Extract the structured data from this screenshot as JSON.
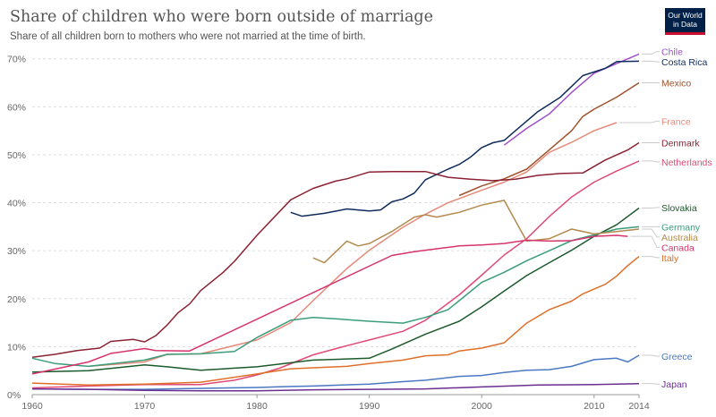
{
  "header": {
    "title": "Share of children who were born outside of marriage",
    "subtitle": "Share of all children born to mothers who were not married at the time of birth.",
    "logo_line1": "Our World",
    "logo_line2": "in Data"
  },
  "chart_data": {
    "type": "line",
    "title": "Share of children who were born outside of marriage",
    "subtitle": "Share of all children born to mothers who were not married at the time of birth.",
    "xlabel": "",
    "ylabel": "",
    "xlim": [
      1960,
      2014
    ],
    "ylim": [
      0,
      72
    ],
    "x_ticks": [
      1960,
      1970,
      1980,
      1990,
      2000,
      2010,
      2014
    ],
    "y_ticks": [
      0,
      10,
      20,
      30,
      40,
      50,
      60,
      70
    ],
    "y_tick_labels": [
      "0%",
      "10%",
      "20%",
      "30%",
      "40%",
      "50%",
      "60%",
      "70%"
    ],
    "grid": "horizontal dashed",
    "legend": "right, labels at line ends",
    "series": [
      {
        "name": "Chile",
        "color": "#a04ec7",
        "label_value": 71.5,
        "points": [
          [
            2002,
            52
          ],
          [
            2004,
            55.5
          ],
          [
            2006,
            58.5
          ],
          [
            2008,
            63
          ],
          [
            2010,
            67
          ],
          [
            2012,
            69
          ],
          [
            2014,
            71
          ]
        ]
      },
      {
        "name": "Costa Rica",
        "color": "#0f2b5c",
        "label_value": 69.5,
        "points": [
          [
            1983,
            38
          ],
          [
            1984,
            37.2
          ],
          [
            1986,
            37.8
          ],
          [
            1988,
            38.7
          ],
          [
            1990,
            38.3
          ],
          [
            1991,
            38.5
          ],
          [
            1992,
            40.2
          ],
          [
            1993,
            40.8
          ],
          [
            1994,
            42
          ],
          [
            1995,
            44.8
          ],
          [
            1997,
            47
          ],
          [
            1998,
            48
          ],
          [
            1999,
            49.5
          ],
          [
            2000,
            51.5
          ],
          [
            2001,
            52.5
          ],
          [
            2002,
            53
          ],
          [
            2003,
            55
          ],
          [
            2005,
            59
          ],
          [
            2007,
            62
          ],
          [
            2009,
            66.5
          ],
          [
            2011,
            68
          ],
          [
            2012,
            69.4
          ],
          [
            2014,
            69.5
          ]
        ]
      },
      {
        "name": "Mexico",
        "color": "#a0522d",
        "label_value": 65,
        "points": [
          [
            1998,
            41.5
          ],
          [
            2000,
            43.5
          ],
          [
            2002,
            45
          ],
          [
            2004,
            47
          ],
          [
            2006,
            51
          ],
          [
            2008,
            55
          ],
          [
            2009,
            58
          ],
          [
            2010,
            59.5
          ],
          [
            2012,
            62
          ],
          [
            2014,
            65
          ]
        ]
      },
      {
        "name": "France",
        "color": "#e58a7a",
        "label_value": 57,
        "points": [
          [
            1965,
            5.9
          ],
          [
            1970,
            6.8
          ],
          [
            1972,
            8.4
          ],
          [
            1975,
            8.5
          ],
          [
            1980,
            11.4
          ],
          [
            1983,
            15
          ],
          [
            1985,
            19.6
          ],
          [
            1988,
            26.3
          ],
          [
            1990,
            30.1
          ],
          [
            1993,
            34.9
          ],
          [
            1995,
            37.6
          ],
          [
            1997,
            40
          ],
          [
            2000,
            42.6
          ],
          [
            2002,
            44.3
          ],
          [
            2004,
            46.4
          ],
          [
            2006,
            50.5
          ],
          [
            2008,
            52.6
          ],
          [
            2010,
            55
          ],
          [
            2012,
            56.7
          ]
        ]
      },
      {
        "name": "Denmark",
        "color": "#8b2233",
        "label_value": 52.5,
        "points": [
          [
            1960,
            7.8
          ],
          [
            1962,
            8.4
          ],
          [
            1964,
            9.2
          ],
          [
            1966,
            9.7
          ],
          [
            1967,
            11.1
          ],
          [
            1969,
            11.5
          ],
          [
            1970,
            11
          ],
          [
            1971,
            12.3
          ],
          [
            1972,
            14.5
          ],
          [
            1973,
            17.1
          ],
          [
            1974,
            18.9
          ],
          [
            1975,
            21.7
          ],
          [
            1977,
            25.5
          ],
          [
            1978,
            27.8
          ],
          [
            1980,
            33.2
          ],
          [
            1983,
            40.6
          ],
          [
            1985,
            43
          ],
          [
            1987,
            44.5
          ],
          [
            1988,
            45
          ],
          [
            1990,
            46.4
          ],
          [
            1992,
            46.5
          ],
          [
            1995,
            46.5
          ],
          [
            1997,
            45.3
          ],
          [
            1999,
            44.9
          ],
          [
            2001,
            44.6
          ],
          [
            2003,
            44.9
          ],
          [
            2005,
            45.7
          ],
          [
            2007,
            46.1
          ],
          [
            2009,
            46.2
          ],
          [
            2011,
            48.9
          ],
          [
            2013,
            51
          ],
          [
            2014,
            52.5
          ]
        ]
      },
      {
        "name": "Netherlands",
        "color": "#e04a77",
        "label_value": 48.5,
        "points": [
          [
            1960,
            1.4
          ],
          [
            1965,
            1.8
          ],
          [
            1970,
            2.1
          ],
          [
            1975,
            2.1
          ],
          [
            1978,
            3
          ],
          [
            1980,
            4.1
          ],
          [
            1982,
            5.5
          ],
          [
            1985,
            8.3
          ],
          [
            1988,
            10.2
          ],
          [
            1990,
            11.4
          ],
          [
            1993,
            13.2
          ],
          [
            1995,
            15.5
          ],
          [
            1998,
            20.8
          ],
          [
            2000,
            24.9
          ],
          [
            2002,
            29.1
          ],
          [
            2004,
            32.5
          ],
          [
            2006,
            37.1
          ],
          [
            2008,
            41.2
          ],
          [
            2010,
            44.3
          ],
          [
            2012,
            46.6
          ],
          [
            2014,
            48.7
          ]
        ]
      },
      {
        "name": "Slovakia",
        "color": "#1d5a2c",
        "label_value": 39,
        "points": [
          [
            1960,
            4.7
          ],
          [
            1965,
            5
          ],
          [
            1968,
            5.7
          ],
          [
            1970,
            6.2
          ],
          [
            1972,
            5.8
          ],
          [
            1975,
            5.1
          ],
          [
            1980,
            5.8
          ],
          [
            1985,
            7.2
          ],
          [
            1990,
            7.6
          ],
          [
            1992,
            9.5
          ],
          [
            1995,
            12.6
          ],
          [
            1998,
            15.3
          ],
          [
            2000,
            18.3
          ],
          [
            2002,
            21.6
          ],
          [
            2004,
            24.8
          ],
          [
            2006,
            27.5
          ],
          [
            2008,
            30.1
          ],
          [
            2010,
            33
          ],
          [
            2012,
            35.4
          ],
          [
            2014,
            38.9
          ]
        ]
      },
      {
        "name": "Germany",
        "color": "#3a9d7a",
        "label_value": 35,
        "points": [
          [
            1960,
            7.6
          ],
          [
            1962,
            6.5
          ],
          [
            1965,
            5.9
          ],
          [
            1970,
            7.2
          ],
          [
            1972,
            8.4
          ],
          [
            1975,
            8.5
          ],
          [
            1978,
            9
          ],
          [
            1980,
            11.9
          ],
          [
            1983,
            15.5
          ],
          [
            1985,
            16.1
          ],
          [
            1987,
            15.8
          ],
          [
            1990,
            15.3
          ],
          [
            1993,
            14.9
          ],
          [
            1995,
            16.1
          ],
          [
            1997,
            17.7
          ],
          [
            2000,
            23.4
          ],
          [
            2002,
            25.5
          ],
          [
            2004,
            27.9
          ],
          [
            2006,
            30
          ],
          [
            2008,
            32.1
          ],
          [
            2010,
            33.3
          ],
          [
            2012,
            34.5
          ],
          [
            2014,
            35
          ]
        ]
      },
      {
        "name": "Australia",
        "color": "#b38a4d",
        "label_value": 34.5,
        "points": [
          [
            1985,
            28.5
          ],
          [
            1986,
            27.5
          ],
          [
            1988,
            32
          ],
          [
            1989,
            31
          ],
          [
            1990,
            31.5
          ],
          [
            1992,
            34
          ],
          [
            1993,
            35.5
          ],
          [
            1994,
            37
          ],
          [
            1995,
            37.5
          ],
          [
            1996,
            37
          ],
          [
            1998,
            38
          ],
          [
            2000,
            39.5
          ],
          [
            2002,
            40.5
          ],
          [
            2004,
            32
          ],
          [
            2006,
            32.5
          ],
          [
            2008,
            34.5
          ],
          [
            2010,
            33.5
          ],
          [
            2012,
            34
          ],
          [
            2014,
            34.5
          ]
        ]
      },
      {
        "name": "Canada",
        "color": "#d6336c",
        "label_value": 33,
        "points": [
          [
            1960,
            4.3
          ],
          [
            1965,
            6.8
          ],
          [
            1967,
            8.6
          ],
          [
            1970,
            9.6
          ],
          [
            1971,
            9.2
          ],
          [
            1974,
            9.1
          ],
          [
            1992,
            29
          ],
          [
            1994,
            29.8
          ],
          [
            1996,
            30.4
          ],
          [
            1998,
            31
          ],
          [
            2000,
            31.2
          ],
          [
            2002,
            31.5
          ],
          [
            2004,
            32.2
          ],
          [
            2006,
            32
          ],
          [
            2008,
            32.1
          ],
          [
            2010,
            33
          ],
          [
            2012,
            33.2
          ],
          [
            2013,
            33
          ]
        ]
      },
      {
        "name": "Italy",
        "color": "#e06f2a",
        "label_value": 29,
        "points": [
          [
            1960,
            2.4
          ],
          [
            1965,
            2
          ],
          [
            1970,
            2.2
          ],
          [
            1975,
            2.6
          ],
          [
            1980,
            4.3
          ],
          [
            1983,
            5.4
          ],
          [
            1985,
            5.6
          ],
          [
            1988,
            5.9
          ],
          [
            1990,
            6.5
          ],
          [
            1993,
            7.2
          ],
          [
            1995,
            8.1
          ],
          [
            1997,
            8.3
          ],
          [
            1998,
            9.1
          ],
          [
            2000,
            9.7
          ],
          [
            2002,
            10.8
          ],
          [
            2004,
            14.9
          ],
          [
            2006,
            17.7
          ],
          [
            2008,
            19.5
          ],
          [
            2009,
            21
          ],
          [
            2011,
            23
          ],
          [
            2012,
            24.7
          ],
          [
            2013,
            26.9
          ],
          [
            2014,
            28.8
          ]
        ]
      },
      {
        "name": "Greece",
        "color": "#4a78c2",
        "label_value": 8,
        "points": [
          [
            1960,
            1.2
          ],
          [
            1965,
            1.1
          ],
          [
            1970,
            1.1
          ],
          [
            1975,
            1.3
          ],
          [
            1980,
            1.5
          ],
          [
            1983,
            1.7
          ],
          [
            1985,
            1.8
          ],
          [
            1990,
            2.2
          ],
          [
            1993,
            2.7
          ],
          [
            1995,
            3
          ],
          [
            1998,
            3.8
          ],
          [
            2000,
            4
          ],
          [
            2002,
            4.6
          ],
          [
            2004,
            5.1
          ],
          [
            2006,
            5.2
          ],
          [
            2008,
            5.9
          ],
          [
            2010,
            7.3
          ],
          [
            2012,
            7.6
          ],
          [
            2013,
            6.8
          ],
          [
            2014,
            8.2
          ]
        ]
      },
      {
        "name": "Japan",
        "color": "#6a2f8f",
        "label_value": 2.2,
        "points": [
          [
            1960,
            1.2
          ],
          [
            1965,
            1.1
          ],
          [
            1970,
            0.9
          ],
          [
            1975,
            0.8
          ],
          [
            1980,
            0.8
          ],
          [
            1985,
            1
          ],
          [
            1990,
            1.1
          ],
          [
            1995,
            1.2
          ],
          [
            2000,
            1.6
          ],
          [
            2005,
            2
          ],
          [
            2010,
            2.1
          ],
          [
            2014,
            2.3
          ]
        ]
      }
    ]
  }
}
